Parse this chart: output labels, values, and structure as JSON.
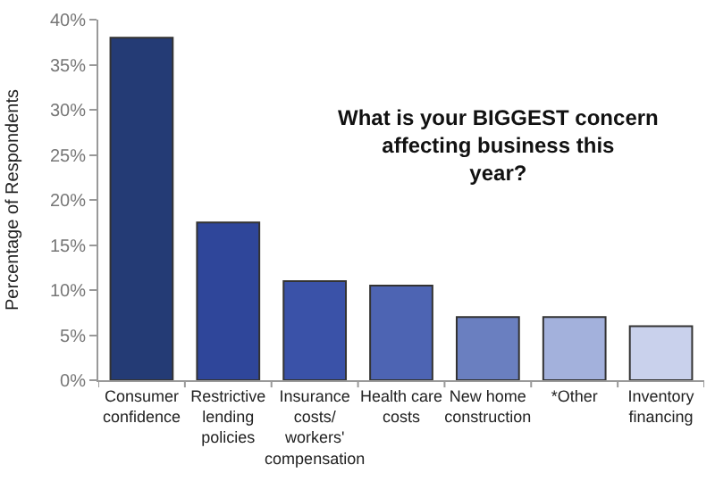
{
  "chart_data": {
    "type": "bar",
    "title": "What is your BIGGEST concern affecting business this year?",
    "ylabel": "Percentage of Respondents",
    "categories": [
      "Consumer confidence",
      "Restrictive lending policies",
      "Insurance costs/ workers' compensation",
      "Health care costs",
      "New home construction",
      "*Other",
      "Inventory financing"
    ],
    "values": [
      38,
      17.5,
      11,
      10.5,
      7,
      7,
      6
    ],
    "colors": [
      "#243b75",
      "#2f469a",
      "#3a52a8",
      "#4d64b3",
      "#6a7fc0",
      "#a3b1dc",
      "#c9d1ec"
    ],
    "ylim": [
      0,
      40
    ],
    "yticks": [
      {
        "value": 0,
        "label": "0%"
      },
      {
        "value": 5,
        "label": "5%"
      },
      {
        "value": 10,
        "label": "10%"
      },
      {
        "value": 15,
        "label": "15%"
      },
      {
        "value": 20,
        "label": "20%"
      },
      {
        "value": 25,
        "label": "25%"
      },
      {
        "value": 30,
        "label": "30%"
      },
      {
        "value": 35,
        "label": "35%"
      },
      {
        "value": 40,
        "label": "40%"
      }
    ]
  }
}
